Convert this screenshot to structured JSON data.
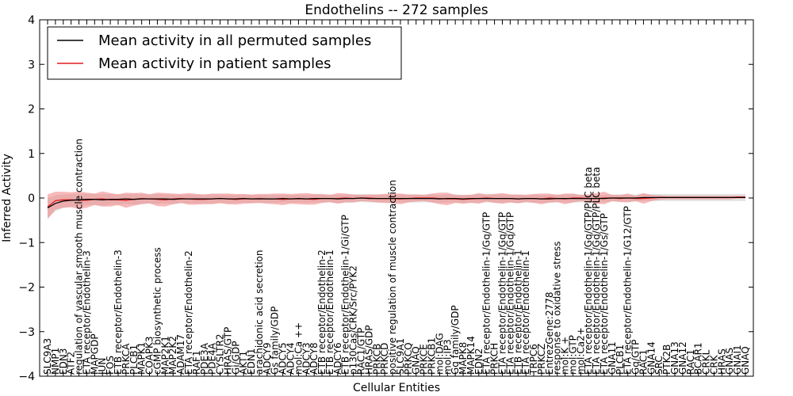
{
  "chart_data": {
    "type": "line",
    "title": "Endothelins -- 272 samples",
    "xlabel": "Cellular Entities",
    "ylabel": "Inferred Activity",
    "ylim": [
      -4,
      4
    ],
    "yticks": [
      4,
      3,
      2,
      1,
      0,
      -1,
      -2,
      -3,
      -4
    ],
    "grid": false,
    "legend_position": "top-left",
    "legend": [
      {
        "label": "Mean activity in all permuted samples",
        "color": "#000000"
      },
      {
        "label": "Mean activity in patient samples",
        "color": "#e31a1c"
      }
    ],
    "categories": [
      "SLC9A3",
      "NMP1",
      "EDN3",
      "ATF2",
      "regulation of vascular smooth muscle contraction",
      "ETA receptor/Endothelin-3",
      "MAPGDP",
      "JUN",
      "FOS",
      "ETB receptor/Endothelin-3",
      "PRKCA",
      "PLCB1",
      "MAPK1",
      "COAPK3",
      "cGMP biosynthetic process",
      "MAP2K1",
      "MAP2K2",
      "ADAM17",
      "ETA receptor/Endothelin-2",
      "RAF1",
      "PDE3A",
      "PDE4A",
      "CYSLTR2",
      "HRAS/GTP",
      "Gi/GDP",
      "AKT1",
      "EDN1",
      "arachidonic acid secretion",
      "ADCY9",
      "Gs family/GDP",
      "ADCY5",
      "ADCY4",
      "mol:Ca ++",
      "ADCY3",
      "ADCY8",
      "ETB receptor/Endothelin-2",
      "ETB receptor/Endothelin-1",
      "ADCY6",
      "ETB receptor/Endothelin-1/Gi/GTP",
      "p130Cas/CRK/Src/PYK2",
      "RAC1/GTP",
      "HRAS/GDP",
      "PRKCB",
      "PRKCD",
      "positive regulation of muscle contraction",
      "SLC9A1",
      "PRKCQ",
      "GNAQ",
      "PRKCE",
      "PRKCB1",
      "mol:DAG",
      "mol:IP3",
      "Gq family/GDP",
      "MAPK8",
      "MAPK14",
      "EDN2",
      "ETA receptor/Endothelin-1/Gq/GTP",
      "PRKCH",
      "ETA receptor/Endothelin-1/Gq/GTP",
      "ETA receptor/Endothelin-1/Gq/GTP",
      "ETB receptor/Endothelin-1",
      "ETA receptor/Endothelin-1",
      "TRPC6",
      "PRKCZ",
      "EntrezGene:2778",
      "response to oxidative stress",
      "mol:K +",
      "mol:GTP",
      "mol:Ca2+",
      "ETA receptor/Endothelin-1/Gq/GTP/PLC beta",
      "ETA receptor/Endothelin-1/Gq/GTP/PLC beta",
      "ETA receptor/Endothelin-1/Gs/GTP",
      "GNA11",
      "PLCB1",
      "ETA receptor/Endothelin-1/G12/GTP",
      "Gq/GTP",
      "RAC1",
      "GNA14",
      "SRC",
      "PTK2B",
      "GNA13",
      "GNA12",
      "RAC1",
      "BCAR1",
      "CRKL",
      "CRK",
      "HRAS",
      "GNAS",
      "GNAI1",
      "GNAQ"
    ],
    "series": [
      {
        "name": "Mean activity in all permuted samples",
        "values": [
          -0.22,
          -0.12,
          -0.07,
          -0.05,
          -0.04,
          -0.03,
          -0.03,
          -0.04,
          -0.03,
          -0.03,
          -0.02,
          -0.03,
          -0.02,
          -0.02,
          -0.02,
          -0.02,
          -0.03,
          -0.02,
          -0.02,
          -0.02,
          -0.02,
          -0.02,
          -0.01,
          -0.02,
          -0.02,
          -0.01,
          -0.02,
          -0.02,
          -0.02,
          -0.02,
          -0.01,
          -0.02,
          -0.01,
          -0.02,
          -0.01,
          -0.01,
          -0.01,
          -0.02,
          -0.01,
          -0.01,
          0.0,
          -0.01,
          -0.01,
          -0.01,
          -0.01,
          -0.01,
          -0.01,
          -0.01,
          -0.01,
          -0.01,
          -0.02,
          -0.01,
          -0.01,
          -0.02,
          -0.01,
          -0.01,
          -0.01,
          -0.01,
          -0.01,
          -0.01,
          -0.02,
          -0.01,
          -0.01,
          -0.02,
          -0.02,
          -0.01,
          -0.01,
          -0.01,
          -0.01,
          -0.01,
          -0.01,
          -0.01,
          0.0,
          0.0,
          0.0,
          0.0,
          0.01,
          0.01,
          0.01,
          0.01,
          0.01,
          0.01,
          0.01,
          0.01,
          0.01,
          0.01,
          0.01,
          0.01,
          0.01,
          0.01
        ],
        "spread": [
          0.22,
          0.18,
          0.15,
          0.14,
          0.14,
          0.13,
          0.12,
          0.13,
          0.12,
          0.12,
          0.11,
          0.12,
          0.11,
          0.11,
          0.11,
          0.1,
          0.11,
          0.1,
          0.1,
          0.1,
          0.1,
          0.1,
          0.09,
          0.1,
          0.09,
          0.09,
          0.09,
          0.09,
          0.09,
          0.09,
          0.09,
          0.09,
          0.09,
          0.09,
          0.09,
          0.09,
          0.09,
          0.09,
          0.09,
          0.09,
          0.09,
          0.09,
          0.09,
          0.09,
          0.09,
          0.09,
          0.09,
          0.09,
          0.09,
          0.09,
          0.09,
          0.09,
          0.09,
          0.09,
          0.09,
          0.09,
          0.09,
          0.09,
          0.09,
          0.09,
          0.09,
          0.09,
          0.09,
          0.09,
          0.09,
          0.09,
          0.09,
          0.09,
          0.09,
          0.09,
          0.09,
          0.08,
          0.08,
          0.08,
          0.08,
          0.08,
          0.08,
          0.08,
          0.08,
          0.08,
          0.08,
          0.08,
          0.08,
          0.08,
          0.08,
          0.08,
          0.08,
          0.08,
          0.08,
          0.08
        ]
      },
      {
        "name": "Mean activity in patient samples",
        "values": [
          -0.2,
          -0.06,
          -0.04,
          -0.04,
          -0.05,
          -0.05,
          -0.03,
          -0.02,
          -0.04,
          -0.04,
          -0.05,
          -0.03,
          -0.01,
          -0.02,
          -0.03,
          -0.04,
          -0.02,
          -0.01,
          -0.02,
          -0.03,
          -0.03,
          -0.02,
          -0.01,
          -0.02,
          -0.03,
          -0.02,
          -0.02,
          -0.01,
          -0.02,
          -0.02,
          -0.03,
          -0.02,
          -0.02,
          -0.02,
          -0.03,
          -0.01,
          -0.01,
          -0.01,
          0.0,
          -0.01,
          0.0,
          0.0,
          -0.01,
          -0.01,
          -0.01,
          -0.02,
          -0.01,
          0.0,
          0.0,
          0.0,
          -0.01,
          -0.02,
          -0.02,
          -0.03,
          -0.02,
          -0.01,
          0.0,
          -0.01,
          -0.01,
          -0.01,
          -0.02,
          -0.01,
          -0.01,
          -0.02,
          0.0,
          -0.01,
          -0.02,
          0.0,
          0.0,
          -0.01,
          -0.01,
          0.0,
          0.0,
          -0.01,
          0.0,
          -0.01,
          -0.01,
          0.0,
          0.01,
          0.01,
          0.01,
          0.01,
          0.01,
          0.01,
          0.01,
          0.01,
          0.01,
          0.01,
          0.02,
          0.02
        ],
        "spread": [
          0.28,
          0.2,
          0.18,
          0.17,
          0.2,
          0.17,
          0.13,
          0.17,
          0.15,
          0.12,
          0.17,
          0.14,
          0.13,
          0.1,
          0.15,
          0.15,
          0.12,
          0.1,
          0.13,
          0.12,
          0.11,
          0.12,
          0.11,
          0.12,
          0.12,
          0.11,
          0.1,
          0.1,
          0.11,
          0.12,
          0.13,
          0.11,
          0.12,
          0.13,
          0.12,
          0.1,
          0.08,
          0.12,
          0.1,
          0.09,
          0.07,
          0.08,
          0.09,
          0.1,
          0.11,
          0.12,
          0.09,
          0.08,
          0.07,
          0.1,
          0.13,
          0.14,
          0.09,
          0.1,
          0.09,
          0.12,
          0.08,
          0.1,
          0.12,
          0.09,
          0.1,
          0.08,
          0.1,
          0.12,
          0.1,
          0.08,
          0.12,
          0.1,
          0.07,
          0.09,
          0.12,
          0.14,
          0.07,
          0.08,
          0.1,
          0.06,
          0.12,
          0.07,
          0.05,
          0.04,
          0.04,
          0.04,
          0.04,
          0.04,
          0.04,
          0.04,
          0.04,
          0.04,
          0.03,
          0.03
        ]
      }
    ]
  }
}
